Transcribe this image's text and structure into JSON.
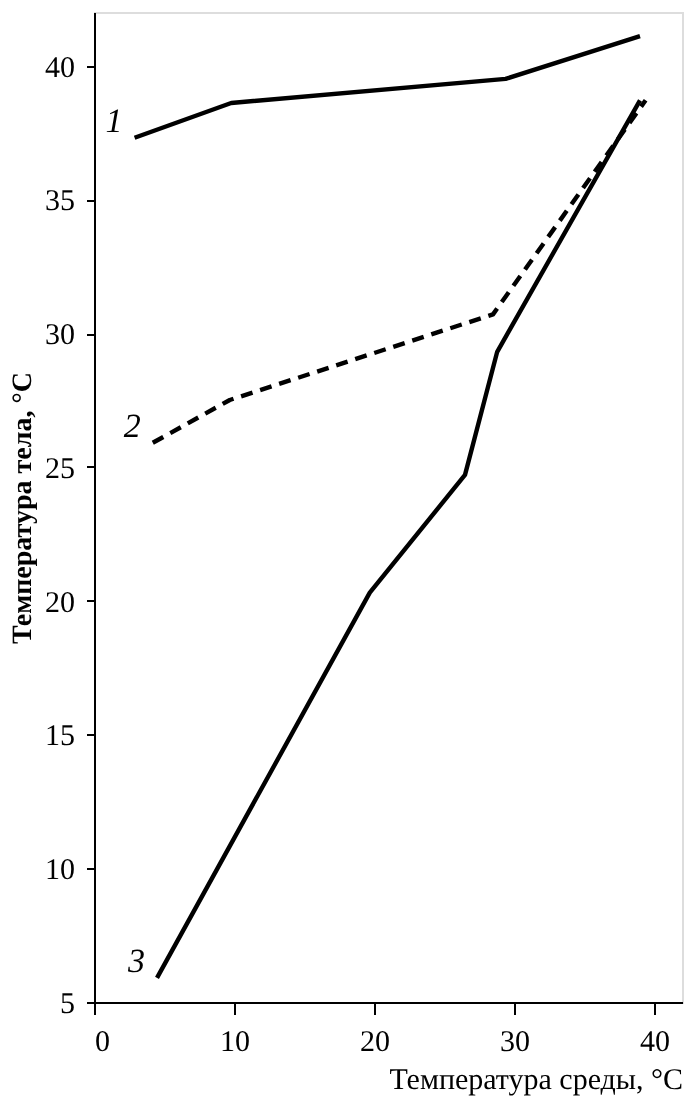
{
  "chart_data": {
    "type": "line",
    "xlabel": "Температура среды, °C",
    "ylabel": "Температура тела, °C",
    "xlim": [
      0,
      42
    ],
    "ylim": [
      5,
      42
    ],
    "xticks": [
      0,
      10,
      20,
      30,
      40
    ],
    "yticks": [
      5,
      10,
      15,
      20,
      25,
      30,
      35,
      40
    ],
    "grid": false,
    "marker": "none",
    "series": [
      {
        "name": "1",
        "color": "#000000",
        "line_style": "solid",
        "x": [
          2.9,
          9.8,
          29.4,
          39
        ],
        "values": [
          37.3,
          38.6,
          39.5,
          41.1
        ]
      },
      {
        "name": "2",
        "color": "#000000",
        "line_style": "dashed",
        "x": [
          4.2,
          9.7,
          28.5,
          39.4
        ],
        "values": [
          25.9,
          27.5,
          30.7,
          38.7
        ]
      },
      {
        "name": "3",
        "color": "#000000",
        "line_style": "solid",
        "x": [
          4.5,
          19.7,
          26.5,
          28.8,
          39
        ],
        "values": [
          5.9,
          20.3,
          24.7,
          29.3,
          38.7
        ]
      }
    ]
  }
}
